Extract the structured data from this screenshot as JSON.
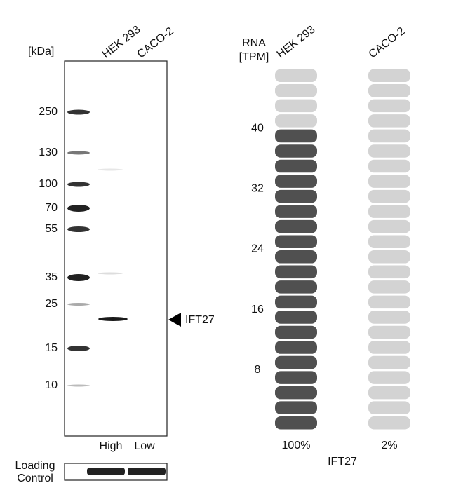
{
  "blot": {
    "unit": "[kDa]",
    "lanes": [
      "HEK 293",
      "CACO-2"
    ],
    "markers": [
      250,
      130,
      100,
      70,
      55,
      35,
      25,
      15,
      10
    ],
    "target": "IFT27",
    "levels": [
      "High",
      "Low"
    ],
    "loading_control": [
      "Loading",
      "Control"
    ]
  },
  "rna": {
    "type": "pill-bar",
    "header": [
      "RNA",
      "[TPM]"
    ],
    "cell_lines": [
      "HEK 293",
      "CACO-2"
    ],
    "values": [
      40,
      0.8
    ],
    "percent_labels": [
      "100%",
      "2%"
    ],
    "gene": "IFT27",
    "ylim": [
      0,
      48
    ],
    "yticks": [
      8,
      16,
      24,
      32,
      40
    ],
    "colors": {
      "high": "#505050",
      "low": "#d3d3d3"
    }
  }
}
